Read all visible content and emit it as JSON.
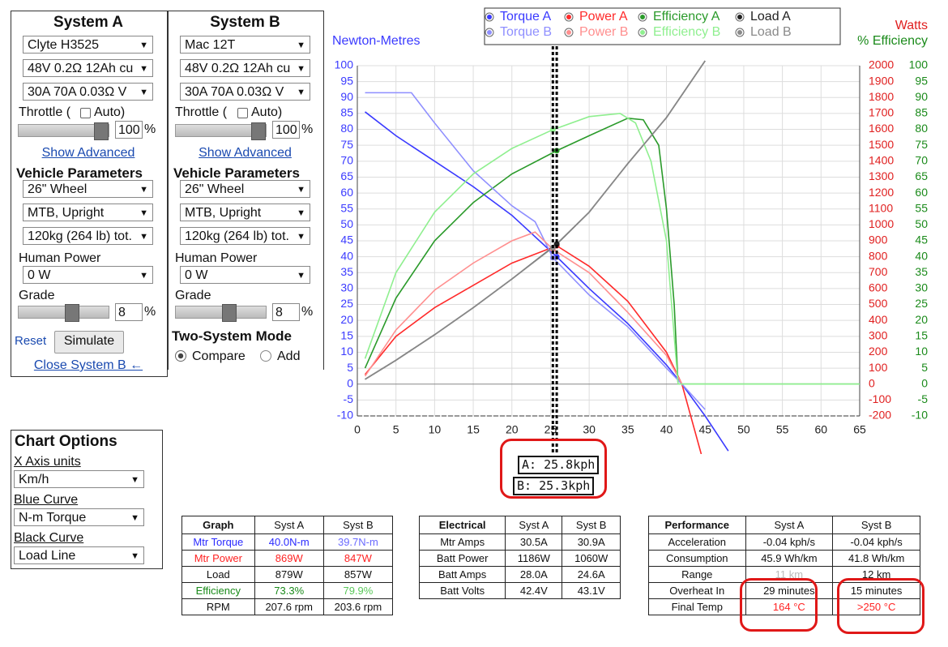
{
  "systemA": {
    "title": "System A",
    "motor": "Clyte H3525",
    "battery": "48V 0.2Ω 12Ah cu",
    "controller": "30A 70A 0.03Ω V",
    "throttle": "Throttle (",
    "auto": "Auto)",
    "throttleValue": "100",
    "throttleUnit": "%",
    "showAdvanced": "Show Advanced",
    "vehicleTitle": "Vehicle Parameters",
    "wheel": "26\"  Wheel",
    "bike": "MTB, Upright",
    "weight": "120kg (264 lb) tot.",
    "humanPowerLabel": "Human Power",
    "humanPower": "0 W",
    "gradeLabel": "Grade",
    "grade": "8",
    "gradeUnit": "%",
    "reset": "Reset",
    "simulate": "Simulate",
    "close": "Close System B ←"
  },
  "systemB": {
    "title": "System B",
    "motor": "Mac 12T",
    "battery": "48V 0.2Ω 12Ah cu",
    "controller": "30A 70A 0.03Ω V",
    "throttle": "Throttle (",
    "auto": "Auto)",
    "throttleValue": "100",
    "throttleUnit": "%",
    "showAdvanced": "Show Advanced",
    "vehicleTitle": "Vehicle Parameters",
    "wheel": "26\"  Wheel",
    "bike": "MTB, Upright",
    "weight": "120kg (264 lb) tot.",
    "humanPowerLabel": "Human Power",
    "humanPower": "0 W",
    "gradeLabel": "Grade",
    "grade": "8",
    "gradeUnit": "%",
    "mode": "Two-System Mode",
    "compare": "Compare",
    "add": "Add"
  },
  "chartOptions": {
    "title": "Chart Options",
    "xLabel": "X Axis units",
    "xUnits": "Km/h",
    "blueLabel": "Blue Curve",
    "blueCurve": "N-m Torque",
    "blackLabel": "Black Curve",
    "blackCurve": "Load Line"
  },
  "chart_data": {
    "type": "line",
    "ylabel": "Newton-Metres",
    "y2label": "Watts",
    "y3label": "% Efficiency",
    "xlim": [
      0,
      65
    ],
    "xticks": [
      0,
      5,
      10,
      15,
      20,
      25,
      30,
      35,
      40,
      45,
      50,
      55,
      60,
      65
    ],
    "ylim": [
      -10,
      100
    ],
    "yticks": [
      -10,
      -5,
      0,
      5,
      10,
      15,
      20,
      25,
      30,
      35,
      40,
      45,
      50,
      55,
      60,
      65,
      70,
      75,
      80,
      85,
      90,
      95,
      100
    ],
    "y2lim": [
      -200,
      2000
    ],
    "y2ticks": [
      -200,
      -100,
      0,
      100,
      200,
      300,
      400,
      500,
      600,
      700,
      800,
      900,
      1000,
      1100,
      1200,
      1300,
      1400,
      1500,
      1600,
      1700,
      1800,
      1900,
      2000
    ],
    "y3lim": [
      -10,
      100
    ],
    "y3ticks": [
      -10,
      -5,
      0,
      5,
      10,
      15,
      20,
      25,
      30,
      35,
      40,
      45,
      50,
      55,
      60,
      65,
      70,
      75,
      80,
      85,
      90,
      95,
      100
    ],
    "grid": true,
    "series": [
      {
        "name": "Torque A",
        "color": "#3a3aff",
        "axis": "y",
        "x": [
          1,
          5,
          10,
          15,
          20,
          25.8,
          30,
          35,
          40,
          42,
          45,
          48
        ],
        "values": [
          85.5,
          78,
          70,
          62,
          53,
          40,
          30,
          19,
          6,
          0,
          -10,
          -21
        ]
      },
      {
        "name": "Power A",
        "color": "#ff2a2a",
        "axis": "y2",
        "x": [
          1,
          5,
          10,
          15,
          20,
          25.8,
          30,
          35,
          40,
          42,
          44.5
        ],
        "values": [
          60,
          300,
          480,
          620,
          760,
          869,
          740,
          520,
          200,
          0,
          -440
        ]
      },
      {
        "name": "Efficiency A",
        "color": "#2a9a2a",
        "axis": "y3",
        "x": [
          1,
          5,
          10,
          15,
          20,
          25.8,
          30,
          35,
          37,
          39,
          40,
          41,
          41.5,
          65
        ],
        "values": [
          5,
          27,
          45,
          57,
          66,
          73.3,
          78,
          83.5,
          83,
          75,
          55,
          25,
          0,
          0
        ]
      },
      {
        "name": "Load A",
        "color": "#222222",
        "axis": "y2",
        "x": [
          1,
          5,
          10,
          15,
          20,
          25.8,
          30,
          35,
          40,
          45
        ],
        "values": [
          30,
          150,
          310,
          480,
          660,
          879,
          1080,
          1385,
          1674,
          2030
        ]
      },
      {
        "name": "Torque B",
        "color": "#8f8fff",
        "axis": "y",
        "x": [
          1,
          7,
          10,
          15,
          20,
          23,
          25.3,
          30,
          35,
          40,
          42,
          45
        ],
        "values": [
          91.5,
          91.5,
          82,
          67,
          56,
          51,
          39.7,
          28,
          18,
          5,
          0,
          -8
        ]
      },
      {
        "name": "Power B",
        "color": "#ff8f8f",
        "axis": "y2",
        "x": [
          1,
          5,
          10,
          15,
          20,
          23,
          25.3,
          30,
          35,
          40,
          42
        ],
        "values": [
          50,
          340,
          590,
          760,
          900,
          955,
          847,
          700,
          450,
          180,
          0
        ]
      },
      {
        "name": "Efficiency B",
        "color": "#8fef8f",
        "axis": "y3",
        "x": [
          1,
          5,
          10,
          15,
          20,
          25.3,
          30,
          34,
          36,
          38,
          40,
          41.5,
          65
        ],
        "values": [
          8,
          35,
          54,
          66,
          74,
          79.9,
          84,
          85,
          82,
          70,
          45,
          0,
          0
        ]
      },
      {
        "name": "Load B",
        "color": "#8a8a8a",
        "axis": "y2",
        "x": [
          1,
          5,
          10,
          15,
          20,
          25.3,
          30,
          35,
          40,
          45
        ],
        "values": [
          30,
          150,
          310,
          480,
          660,
          857,
          1080,
          1385,
          1674,
          2030
        ]
      }
    ],
    "cursors": [
      {
        "x": 25.8,
        "label": "A: 25.8kph"
      },
      {
        "x": 25.3,
        "label": "B: 25.3kph"
      }
    ]
  },
  "tables": [
    {
      "header": [
        "Graph",
        "Syst A",
        "Syst B"
      ],
      "rows": [
        [
          "Mtr Torque",
          "40.0N-m",
          "39.7N-m"
        ],
        [
          "Mtr Power",
          "869W",
          "847W"
        ],
        [
          "Load",
          "879W",
          "857W"
        ],
        [
          "Efficiency",
          "73.3%",
          "79.9%"
        ],
        [
          "RPM",
          "207.6 rpm",
          "203.6 rpm"
        ]
      ]
    },
    {
      "header": [
        "Electrical",
        "Syst A",
        "Syst B"
      ],
      "rows": [
        [
          "Mtr Amps",
          "30.5A",
          "30.9A"
        ],
        [
          "Batt Power",
          "1186W",
          "1060W"
        ],
        [
          "Batt Amps",
          "28.0A",
          "24.6A"
        ],
        [
          "Batt Volts",
          "42.4V",
          "43.1V"
        ]
      ]
    },
    {
      "header": [
        "Performance",
        "Syst A",
        "Syst B"
      ],
      "rows": [
        [
          "Acceleration",
          "-0.04 kph/s",
          "-0.04 kph/s"
        ],
        [
          "Consumption",
          "45.9 Wh/km",
          "41.8 Wh/km"
        ],
        [
          "Range",
          "11 km",
          "12 km"
        ],
        [
          "Overheat In",
          "29 minutes",
          "15 minutes"
        ],
        [
          "Final Temp",
          "164 °C",
          ">250 °C"
        ]
      ]
    }
  ]
}
